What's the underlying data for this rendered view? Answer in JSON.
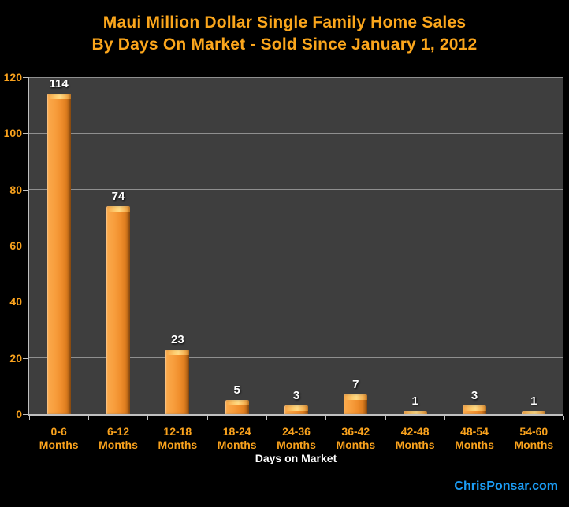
{
  "title": {
    "line1": "Maui Million Dollar Single Family Home Sales",
    "line2": "By Days On Market - Sold Since January 1, 2012"
  },
  "chart_data": {
    "type": "bar",
    "title": "Maui Million Dollar Single Family Home Sales By Days On Market - Sold Since January 1, 2012",
    "categories": [
      "0-6 Months",
      "6-12 Months",
      "12-18 Months",
      "18-24 Months",
      "24-36 Months",
      "36-42 Months",
      "42-48 Months",
      "48-54 Months",
      "54-60 Months"
    ],
    "values": [
      114,
      74,
      23,
      5,
      3,
      7,
      1,
      3,
      1
    ],
    "xlabel": "Days on Market",
    "ylabel": "",
    "ylim": [
      0,
      120
    ],
    "yticks": [
      0,
      20,
      40,
      60,
      80,
      100,
      120
    ],
    "grid": true,
    "legend": "none"
  },
  "footer": {
    "watermark": "ChrisPonsar.com"
  },
  "colors": {
    "page_bg": "#000000",
    "title": "#fba61c",
    "axis_label": "#f9a21d",
    "plot_bg": "#3e3e3e",
    "gridline": "#8f8f8f",
    "axis_line": "#c0c0c0",
    "bar_main": "#f08e2c",
    "bar_highlight": "#ffd67e",
    "bar_shadow": "#aa5c13",
    "value_label": "#ffffff",
    "watermark": "#1b9cf4"
  }
}
